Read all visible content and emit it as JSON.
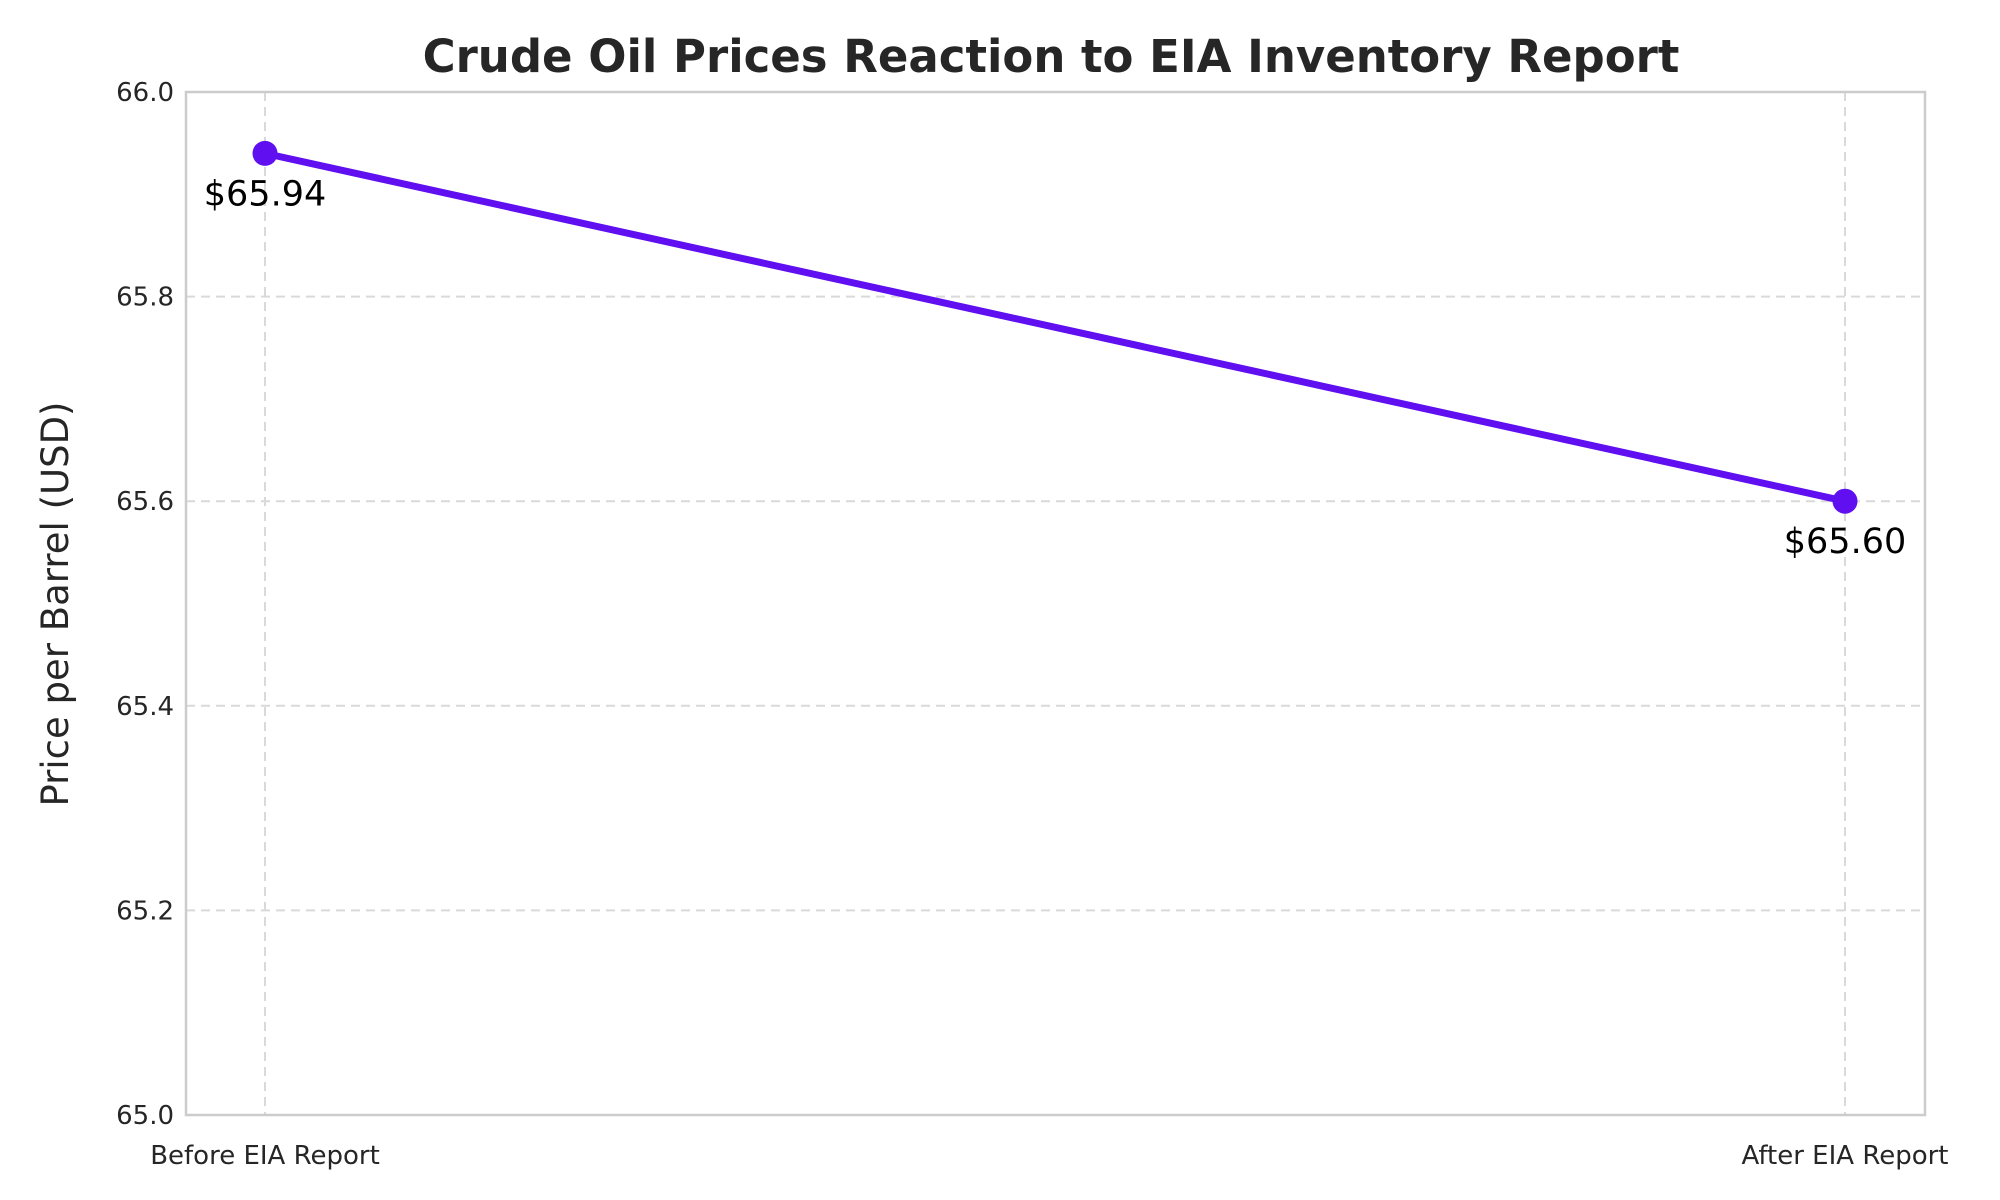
{
  "chart_data": {
    "type": "line",
    "title": "Crude Oil Prices Reaction to EIA Inventory Report",
    "xlabel": "",
    "ylabel": "Price per Barrel (USD)",
    "categories": [
      "Before EIA Report",
      "After EIA Report"
    ],
    "series": [
      {
        "values": [
          65.94,
          65.6
        ],
        "data_labels": [
          "$65.94",
          "$65.60"
        ],
        "color": "#5f0ff0"
      }
    ],
    "ylim": [
      65.0,
      66.0
    ],
    "yticks": [
      65.0,
      65.2,
      65.4,
      65.6,
      65.8,
      66.0
    ],
    "ytick_labels": [
      "65.0",
      "65.2",
      "65.4",
      "65.6",
      "65.8",
      "66.0"
    ],
    "grid": true
  }
}
